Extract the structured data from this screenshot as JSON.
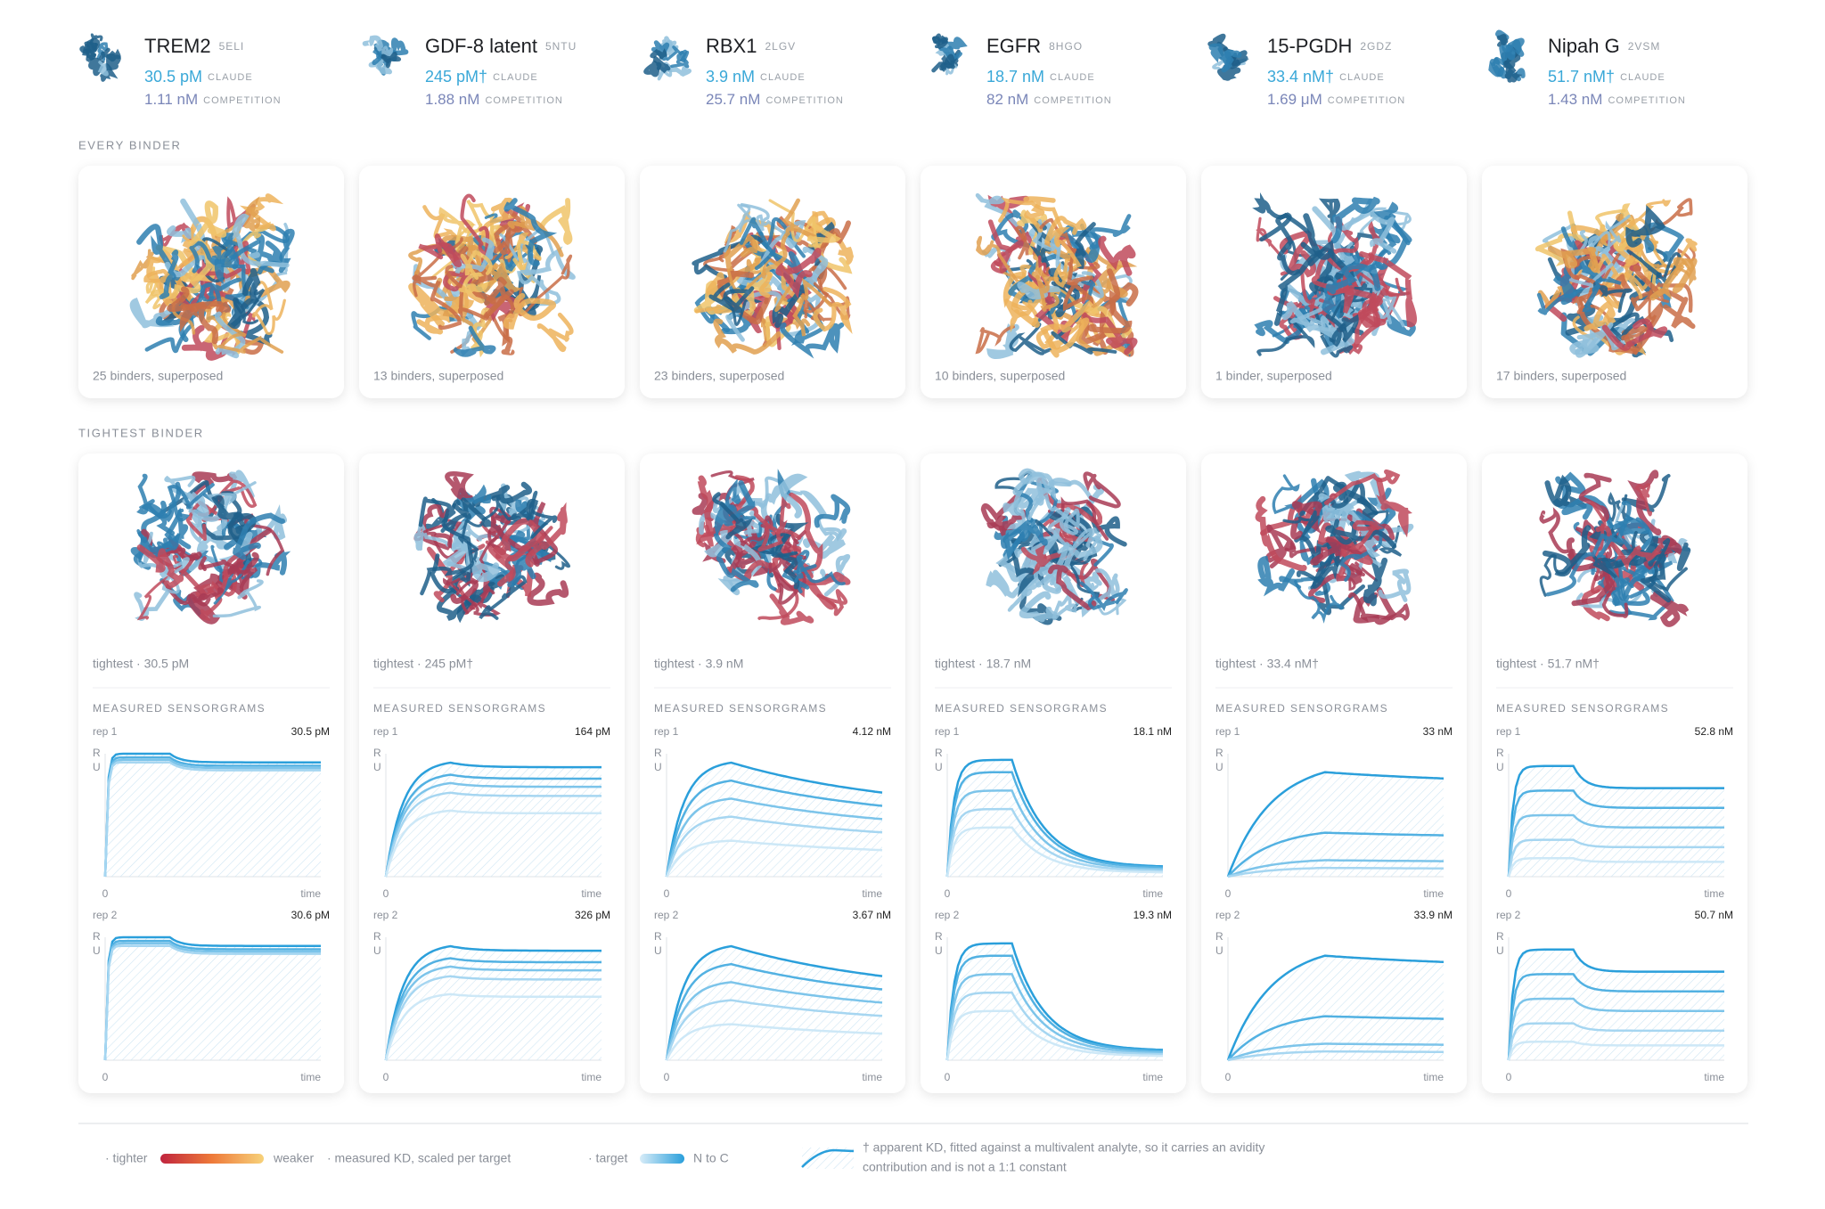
{
  "header": {
    "claude_label": "CLAUDE",
    "competition_label": "COMPETITION"
  },
  "sections": {
    "every_binder": "EVERY BINDER",
    "tightest_binder": "TIGHTEST BINDER",
    "sensorgrams": "MEASURED SENSORGRAMS"
  },
  "plot_labels": {
    "rep1": "rep 1",
    "rep2": "rep 2",
    "y_axis_top": "R",
    "y_axis_bottom": "U",
    "x_start": "0",
    "x_end": "time"
  },
  "targets": [
    {
      "name": "TREM2",
      "pdb": "5ELI",
      "claude": "30.5 pM",
      "competition": "1.11 nM",
      "superposed": "25 binders, superposed",
      "tightest": "tightest · 30.5 pM",
      "rep1": "30.5 pM",
      "rep2": "30.6 pM"
    },
    {
      "name": "GDF-8 latent",
      "pdb": "5NTU",
      "claude": "245 pM†",
      "competition": "1.88 nM",
      "superposed": "13 binders, superposed",
      "tightest": "tightest · 245 pM†",
      "rep1": "164 pM",
      "rep2": "326 pM"
    },
    {
      "name": "RBX1",
      "pdb": "2LGV",
      "claude": "3.9 nM",
      "competition": "25.7 nM",
      "superposed": "23 binders, superposed",
      "tightest": "tightest · 3.9 nM",
      "rep1": "4.12 nM",
      "rep2": "3.67 nM"
    },
    {
      "name": "EGFR",
      "pdb": "8HGO",
      "claude": "18.7 nM",
      "competition": "82 nM",
      "superposed": "10 binders, superposed",
      "tightest": "tightest · 18.7 nM",
      "rep1": "18.1 nM",
      "rep2": "19.3 nM"
    },
    {
      "name": "15-PGDH",
      "pdb": "2GDZ",
      "claude": "33.4 nM†",
      "competition": "1.69 μM",
      "superposed": "1 binder, superposed",
      "tightest": "tightest · 33.4 nM†",
      "rep1": "33 nM",
      "rep2": "33.9 nM"
    },
    {
      "name": "Nipah G",
      "pdb": "2VSM",
      "claude": "51.7 nM†",
      "competition": "1.43 nM",
      "superposed": "17 binders, superposed",
      "tightest": "tightest · 51.7 nM†",
      "rep1": "52.8 nM",
      "rep2": "50.7 nM"
    }
  ],
  "legend": {
    "tighter": "· tighter",
    "weaker": "weaker",
    "scale_note": "· measured KD, scaled per target",
    "target": "· target",
    "n_to_c": "N to C",
    "note_line1": "† apparent KD, fitted against a multivalent analyte, so it carries an avidity",
    "note_line2": "contribution and is not a 1:1 constant"
  }
}
